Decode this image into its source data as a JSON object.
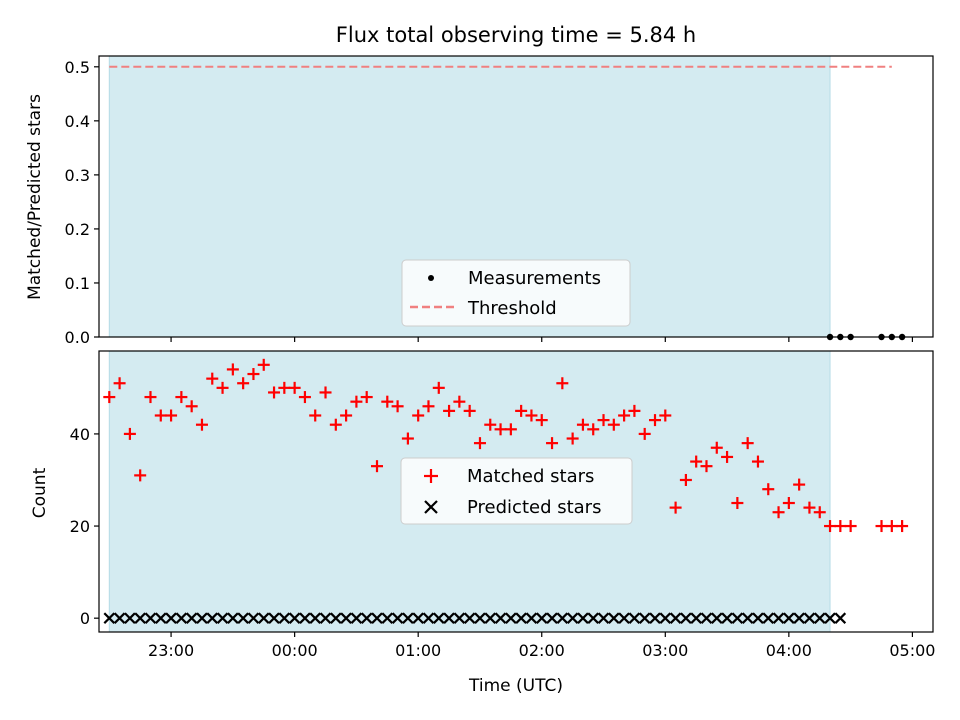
{
  "chart_data": {
    "type": "scatter",
    "title": "Flux total observing time = 5.84 h",
    "xlabel": "Time (UTC)",
    "x_ticks": [
      "23:00",
      "00:00",
      "01:00",
      "02:00",
      "03:00",
      "04:00",
      "05:00"
    ],
    "x_range": [
      "22:25",
      "05:10"
    ],
    "highlight_span": [
      "22:30",
      "04:20"
    ],
    "top_panel": {
      "ylabel": "Matched/Predicted stars",
      "ylim": [
        0,
        0.52
      ],
      "y_ticks": [
        "0.0",
        "0.1",
        "0.2",
        "0.3",
        "0.4",
        "0.5"
      ],
      "threshold": {
        "value": 0.5,
        "x": [
          "22:30",
          "04:50"
        ]
      },
      "measurements": [
        {
          "x": "04:20",
          "y": 0
        },
        {
          "x": "04:25",
          "y": 0
        },
        {
          "x": "04:30",
          "y": 0
        },
        {
          "x": "04:45",
          "y": 0
        },
        {
          "x": "04:50",
          "y": 0
        },
        {
          "x": "04:55",
          "y": 0
        }
      ],
      "legend": [
        "Measurements",
        "Threshold"
      ]
    },
    "bottom_panel": {
      "ylabel": "Count",
      "ylim": [
        -3,
        58
      ],
      "y_ticks": [
        "0",
        "20",
        "40"
      ],
      "matched_stars": [
        48,
        51,
        40,
        31,
        48,
        44,
        44,
        48,
        46,
        42,
        52,
        50,
        54,
        51,
        53,
        55,
        49,
        50,
        50,
        48,
        44,
        49,
        42,
        44,
        47,
        48,
        33,
        47,
        46,
        39,
        44,
        46,
        50,
        45,
        47,
        45,
        38,
        42,
        41,
        41,
        45,
        44,
        43,
        38,
        51,
        39,
        42,
        41,
        43,
        42,
        44,
        45,
        40,
        43,
        44,
        24,
        30,
        34,
        33,
        37,
        35,
        25,
        38,
        34,
        28,
        23,
        25,
        29,
        24,
        23,
        20,
        20,
        20,
        null,
        null,
        20,
        20,
        20
      ],
      "matched_start": "22:30",
      "matched_step_minutes": 5,
      "predicted_stars": {
        "value": 0,
        "from": "22:30",
        "to": "04:25",
        "step_minutes": 5
      },
      "legend": [
        "Matched stars",
        "Predicted stars"
      ]
    },
    "colors": {
      "span": "#d4ebf1",
      "span_edge": "#b5dbe6",
      "threshold": "#f08080",
      "matched": "#ff0000",
      "predicted": "#000000",
      "measurements": "#000000"
    },
    "grid": false,
    "legend_position": "lower-center"
  }
}
